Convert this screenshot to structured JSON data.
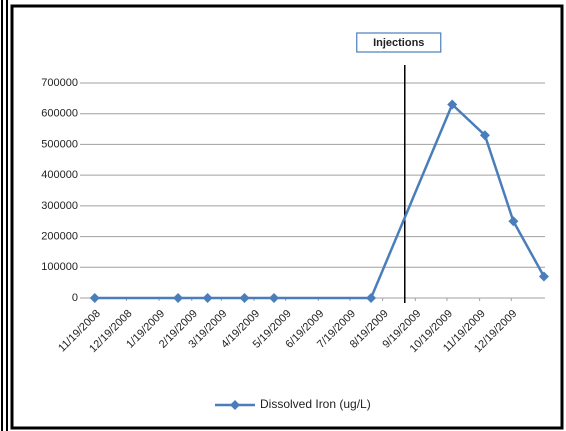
{
  "chart_data": {
    "type": "line",
    "x": [
      "11/19/2008",
      "2/6/2009",
      "3/6/2009",
      "4/10/2009",
      "5/8/2009",
      "8/8/2009",
      "10/24/2009",
      "11/24/2009",
      "12/21/2009",
      "1/19/2010"
    ],
    "series": [
      {
        "name": "Dissolved Iron (ug/L)",
        "color": "#4a7ebb",
        "values": [
          0,
          0,
          0,
          0,
          0,
          0,
          630000,
          530000,
          250000,
          70000
        ]
      }
    ],
    "xlim": [
      "11/5/2008",
      "1/20/2010"
    ],
    "xticks": [
      "11/19/2008",
      "12/19/2008",
      "1/19/2009",
      "2/19/2009",
      "3/19/2009",
      "4/19/2009",
      "5/19/2009",
      "6/19/2009",
      "7/19/2009",
      "8/19/2009",
      "9/19/2009",
      "10/19/2009",
      "11/19/2009",
      "12/19/2009"
    ],
    "ylim": [
      0,
      700000
    ],
    "yticks": [
      0,
      100000,
      200000,
      300000,
      400000,
      500000,
      600000,
      700000
    ],
    "grid": true,
    "legend": "bottom",
    "annotations": [
      {
        "text": "Injections",
        "x": "9/9/2009"
      }
    ]
  }
}
